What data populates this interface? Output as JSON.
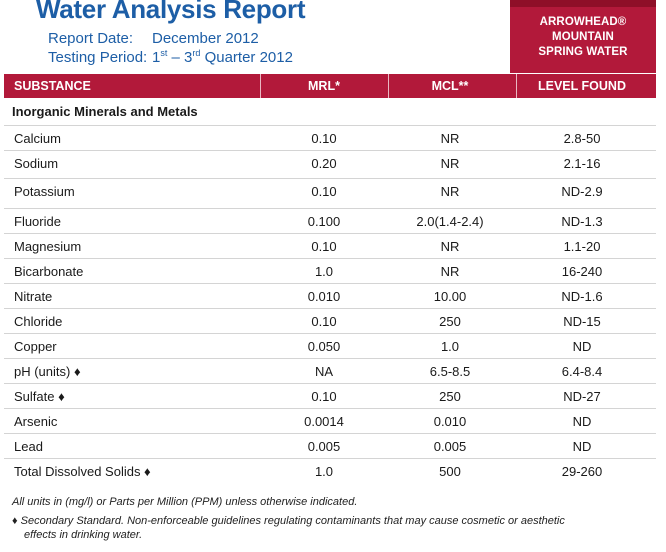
{
  "header": {
    "title": "Water Analysis Report",
    "report_date_label": "Report Date:",
    "report_date_value": "December 2012",
    "testing_period_label": "Testing Period:",
    "testing_period_start": "1",
    "testing_period_start_sup": "st",
    "testing_period_mid": " – 3",
    "testing_period_end_sup": "rd",
    "testing_period_tail": " Quarter 2012",
    "brand_line1": "ARROWHEAD®",
    "brand_line2": "MOUNTAIN",
    "brand_line3": "SPRING WATER",
    "brand_color": "#b2193a",
    "title_color": "#1d5ea6"
  },
  "table": {
    "columns": [
      "SUBSTANCE",
      "MRL*",
      "MCL**",
      "LEVEL FOUND"
    ],
    "section": "Inorganic Minerals and Metals",
    "rows": [
      {
        "substance": "Calcium",
        "mrl": "0.10",
        "mcl": "NR",
        "level": "2.8-50"
      },
      {
        "substance": "Sodium",
        "mrl": "0.20",
        "mcl": "NR",
        "level": "2.1-16"
      },
      {
        "substance": "Potassium",
        "mrl": "0.10",
        "mcl": "NR",
        "level": "ND-2.9"
      },
      {
        "substance": "Fluoride",
        "mrl": "0.100",
        "mcl": "2.0(1.4-2.4)",
        "level": "ND-1.3"
      },
      {
        "substance": "Magnesium",
        "mrl": "0.10",
        "mcl": "NR",
        "level": "1.1-20"
      },
      {
        "substance": "Bicarbonate",
        "mrl": "1.0",
        "mcl": "NR",
        "level": "16-240"
      },
      {
        "substance": "Nitrate",
        "mrl": "0.010",
        "mcl": "10.00",
        "level": "ND-1.6"
      },
      {
        "substance": "Chloride",
        "mrl": "0.10",
        "mcl": "250",
        "level": "ND-15"
      },
      {
        "substance": "Copper",
        "mrl": "0.050",
        "mcl": "1.0",
        "level": "ND"
      },
      {
        "substance": "pH (units) ♦",
        "mrl": "NA",
        "mcl": "6.5-8.5",
        "level": "6.4-8.4"
      },
      {
        "substance": "Sulfate ♦",
        "mrl": "0.10",
        "mcl": "250",
        "level": "ND-27"
      },
      {
        "substance": "Arsenic",
        "mrl": "0.0014",
        "mcl": "0.010",
        "level": "ND"
      },
      {
        "substance": "Lead",
        "mrl": "0.005",
        "mcl": "0.005",
        "level": "ND"
      },
      {
        "substance": "Total Dissolved Solids ♦",
        "mrl": "1.0",
        "mcl": "500",
        "level": "29-260"
      }
    ]
  },
  "footnotes": {
    "units": "All units in (mg/l) or Parts per Million (PPM) unless otherwise indicated.",
    "secondary_line1": "♦  Secondary Standard. Non-enforceable guidelines regulating contaminants that may cause cosmetic or aesthetic",
    "secondary_line2": "effects in drinking water."
  }
}
